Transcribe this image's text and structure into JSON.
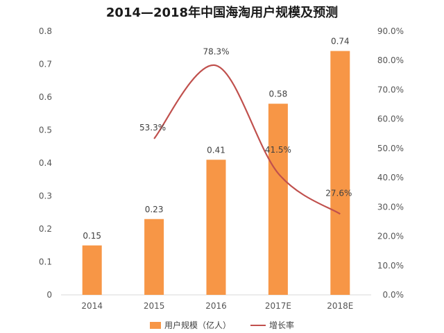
{
  "colors": {
    "bar": "#F79646",
    "line": "#C0504D"
  },
  "chart_data": {
    "type": "bar",
    "title": "2014—2018年中国海淘用户规模及预测",
    "categories": [
      "2014",
      "2015",
      "2016",
      "2017E",
      "2018E"
    ],
    "series": [
      {
        "name": "用户规模（亿人）",
        "type": "bar",
        "axis": "left",
        "values": [
          0.15,
          0.23,
          0.41,
          0.58,
          0.74
        ],
        "labels": [
          "0.15",
          "0.23",
          "0.41",
          "0.58",
          "0.74"
        ]
      },
      {
        "name": "增长率",
        "type": "line",
        "axis": "right",
        "values": [
          null,
          53.3,
          78.3,
          41.5,
          27.6
        ],
        "labels": [
          "",
          "53.3%",
          "78.3%",
          "41.5%",
          "27.6%"
        ]
      }
    ],
    "y_left": {
      "ylim": [
        0,
        0.8
      ],
      "ticks": [
        "0",
        "0.1",
        "0.2",
        "0.3",
        "0.4",
        "0.5",
        "0.6",
        "0.7",
        "0.8"
      ]
    },
    "y_right": {
      "ylim": [
        0,
        90
      ],
      "ticks": [
        "0.0%",
        "10.0%",
        "20.0%",
        "30.0%",
        "40.0%",
        "50.0%",
        "60.0%",
        "70.0%",
        "80.0%",
        "90.0%"
      ]
    },
    "grid": false,
    "legend_position": "bottom"
  }
}
